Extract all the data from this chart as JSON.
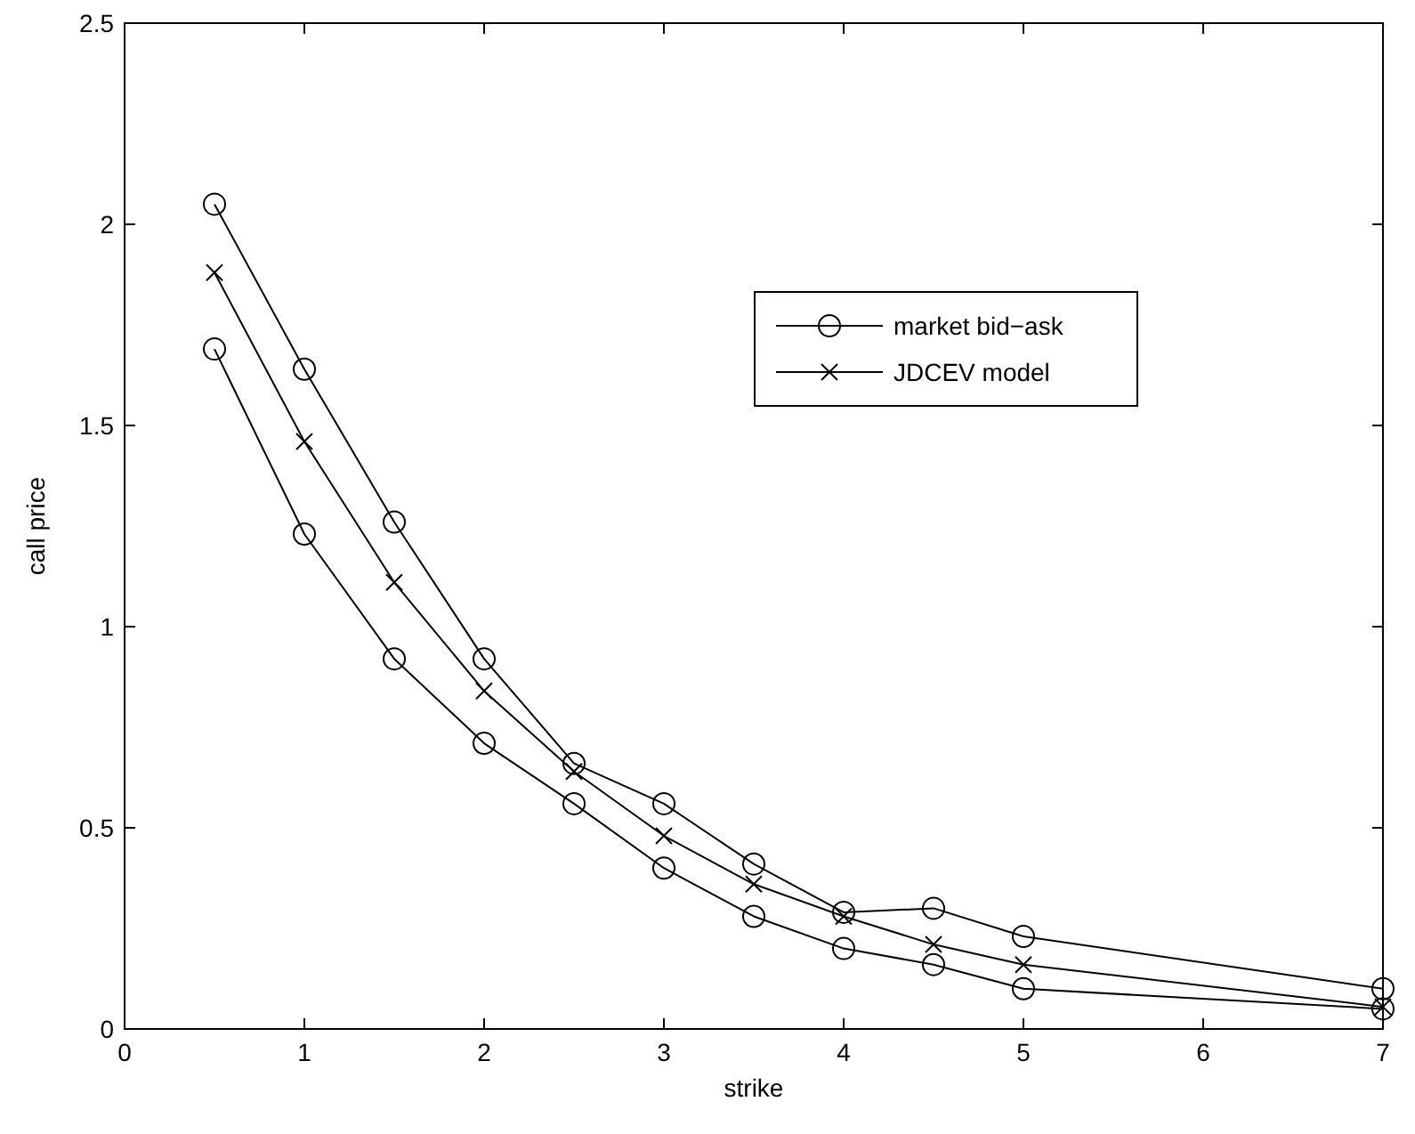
{
  "chart_data": {
    "type": "line",
    "xlabel": "strike",
    "ylabel": "call price",
    "x": [
      0.5,
      1,
      1.5,
      2,
      2.5,
      3,
      3.5,
      4,
      4.5,
      5,
      7
    ],
    "series": [
      {
        "name": "market bid−ask",
        "color": "#000000",
        "marker": "circle",
        "values": [
          2.05,
          1.64,
          1.26,
          0.92,
          0.66,
          0.56,
          0.41,
          0.29,
          0.3,
          0.23,
          0.1
        ]
      },
      {
        "name": "JDCEV model",
        "color": "#000000",
        "marker": "cross",
        "values": [
          1.88,
          1.46,
          1.11,
          0.84,
          0.64,
          0.48,
          0.36,
          0.28,
          0.21,
          0.16,
          0.055
        ]
      },
      {
        "color": "#000000",
        "marker": "circle",
        "values": [
          1.69,
          1.23,
          0.92,
          0.71,
          0.56,
          0.4,
          0.28,
          0.2,
          0.16,
          0.1,
          0.05
        ]
      }
    ],
    "xlim": [
      0,
      7
    ],
    "xticks": [
      0,
      1,
      2,
      3,
      4,
      5,
      6,
      7
    ],
    "ylim": [
      0,
      2.5
    ],
    "yticks": [
      0,
      0.5,
      1,
      1.5,
      2,
      2.5
    ],
    "grid": false,
    "legend": "top right",
    "line_style": "solid"
  }
}
